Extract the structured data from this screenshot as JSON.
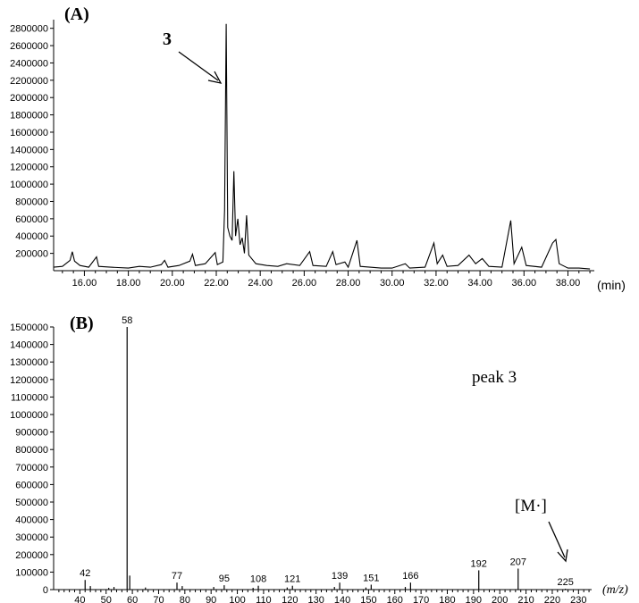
{
  "chart_data": [
    {
      "type": "line",
      "panel_label": "(A)",
      "xlabel": "(min)",
      "ylabel": "",
      "xlim": [
        14.6,
        39.2
      ],
      "ylim": [
        0,
        2900000
      ],
      "x_ticks": [
        "16.00",
        "18.00",
        "20.00",
        "22.00",
        "24.00",
        "26.00",
        "28.00",
        "30.00",
        "32.00",
        "34.00",
        "36.00",
        "38.00"
      ],
      "y_ticks": [
        "200000",
        "400000",
        "600000",
        "800000",
        "1000000",
        "1200000",
        "1400000",
        "1600000",
        "1800000",
        "2000000",
        "2200000",
        "2400000",
        "2600000",
        "2800000"
      ],
      "annotation": {
        "label": "3",
        "x": 22.45,
        "y": 2200000
      },
      "series": [
        {
          "values": [
            [
              14.6,
              40000
            ],
            [
              15.0,
              50000
            ],
            [
              15.35,
              120000
            ],
            [
              15.45,
              220000
            ],
            [
              15.55,
              110000
            ],
            [
              15.8,
              60000
            ],
            [
              16.2,
              40000
            ],
            [
              16.55,
              160000
            ],
            [
              16.65,
              50000
            ],
            [
              17.2,
              40000
            ],
            [
              18.0,
              30000
            ],
            [
              18.5,
              50000
            ],
            [
              19.0,
              40000
            ],
            [
              19.5,
              70000
            ],
            [
              19.65,
              120000
            ],
            [
              19.8,
              40000
            ],
            [
              20.3,
              60000
            ],
            [
              20.8,
              110000
            ],
            [
              20.92,
              190000
            ],
            [
              21.05,
              60000
            ],
            [
              21.5,
              80000
            ],
            [
              21.95,
              210000
            ],
            [
              22.05,
              70000
            ],
            [
              22.3,
              100000
            ],
            [
              22.38,
              700000
            ],
            [
              22.45,
              2850000
            ],
            [
              22.52,
              500000
            ],
            [
              22.62,
              400000
            ],
            [
              22.72,
              350000
            ],
            [
              22.8,
              1150000
            ],
            [
              22.88,
              400000
            ],
            [
              22.98,
              600000
            ],
            [
              23.08,
              300000
            ],
            [
              23.18,
              380000
            ],
            [
              23.28,
              200000
            ],
            [
              23.38,
              640000
            ],
            [
              23.48,
              180000
            ],
            [
              23.8,
              80000
            ],
            [
              24.3,
              60000
            ],
            [
              24.8,
              50000
            ],
            [
              25.2,
              80000
            ],
            [
              25.8,
              60000
            ],
            [
              26.25,
              220000
            ],
            [
              26.4,
              60000
            ],
            [
              27.0,
              50000
            ],
            [
              27.3,
              220000
            ],
            [
              27.45,
              70000
            ],
            [
              27.85,
              100000
            ],
            [
              28.0,
              40000
            ],
            [
              28.4,
              350000
            ],
            [
              28.55,
              50000
            ],
            [
              29.5,
              30000
            ],
            [
              30.0,
              30000
            ],
            [
              30.6,
              80000
            ],
            [
              30.8,
              30000
            ],
            [
              31.5,
              40000
            ],
            [
              31.9,
              320000
            ],
            [
              32.05,
              80000
            ],
            [
              32.3,
              180000
            ],
            [
              32.5,
              50000
            ],
            [
              33.0,
              60000
            ],
            [
              33.5,
              180000
            ],
            [
              33.8,
              80000
            ],
            [
              34.1,
              140000
            ],
            [
              34.4,
              50000
            ],
            [
              35.0,
              40000
            ],
            [
              35.4,
              580000
            ],
            [
              35.55,
              80000
            ],
            [
              35.9,
              270000
            ],
            [
              36.1,
              60000
            ],
            [
              36.8,
              40000
            ],
            [
              37.3,
              320000
            ],
            [
              37.45,
              360000
            ],
            [
              37.6,
              80000
            ],
            [
              38.0,
              30000
            ],
            [
              38.5,
              30000
            ],
            [
              39.0,
              20000
            ]
          ]
        }
      ]
    },
    {
      "type": "bar",
      "panel_label": "(B)",
      "xlabel": "(m/z)",
      "ylabel": "",
      "xlim": [
        30,
        235
      ],
      "ylim": [
        0,
        1500000
      ],
      "x_ticks": [
        40,
        50,
        60,
        70,
        80,
        90,
        100,
        110,
        120,
        130,
        140,
        150,
        160,
        170,
        180,
        190,
        200,
        210,
        220,
        230
      ],
      "y_ticks": [
        "0",
        "100000",
        "200000",
        "300000",
        "400000",
        "500000",
        "600000",
        "700000",
        "800000",
        "900000",
        "1000000",
        "1100000",
        "1200000",
        "1300000",
        "1400000",
        "1500000"
      ],
      "annotation_text": "peak 3",
      "molecular_ion": {
        "label": "[M·]",
        "mz": 225
      },
      "peaks": [
        {
          "mz": 42,
          "value": 55000,
          "label": "42"
        },
        {
          "mz": 44,
          "value": 20000,
          "label": ""
        },
        {
          "mz": 51,
          "value": 10000,
          "label": ""
        },
        {
          "mz": 53,
          "value": 15000,
          "label": ""
        },
        {
          "mz": 58,
          "value": 1500000,
          "label": "58"
        },
        {
          "mz": 59,
          "value": 80000,
          "label": ""
        },
        {
          "mz": 65,
          "value": 12000,
          "label": ""
        },
        {
          "mz": 77,
          "value": 40000,
          "label": "77"
        },
        {
          "mz": 79,
          "value": 20000,
          "label": ""
        },
        {
          "mz": 91,
          "value": 15000,
          "label": ""
        },
        {
          "mz": 95,
          "value": 25000,
          "label": "95"
        },
        {
          "mz": 106,
          "value": 10000,
          "label": ""
        },
        {
          "mz": 108,
          "value": 22000,
          "label": "108"
        },
        {
          "mz": 119,
          "value": 12000,
          "label": ""
        },
        {
          "mz": 121,
          "value": 22000,
          "label": "121"
        },
        {
          "mz": 137,
          "value": 15000,
          "label": ""
        },
        {
          "mz": 139,
          "value": 40000,
          "label": "139"
        },
        {
          "mz": 149,
          "value": 12000,
          "label": ""
        },
        {
          "mz": 151,
          "value": 28000,
          "label": "151"
        },
        {
          "mz": 164,
          "value": 15000,
          "label": ""
        },
        {
          "mz": 166,
          "value": 40000,
          "label": "166"
        },
        {
          "mz": 192,
          "value": 110000,
          "label": "192"
        },
        {
          "mz": 207,
          "value": 120000,
          "label": "207"
        },
        {
          "mz": 225,
          "value": 5000,
          "label": "225"
        }
      ]
    }
  ]
}
